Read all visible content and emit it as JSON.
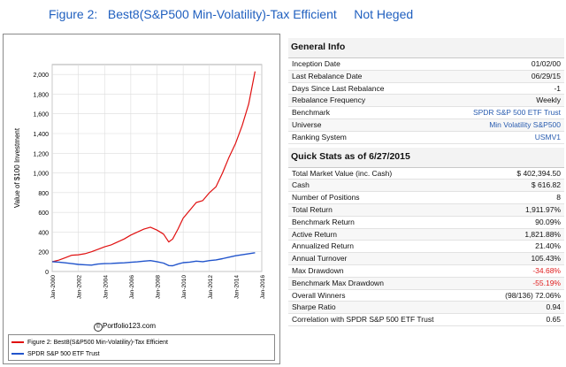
{
  "figure_title": "Figure 2:   Best8(S&P500 Min-Volatility)-Tax Efficient     Not Heged",
  "chart": {
    "ylabel": "Value of $100 Investment",
    "watermark": "Portfolio123.com",
    "legend": [
      {
        "name": "Figure 2:  Best8(S&P500 Min-Volatility)-Tax Efficient",
        "color": "#e01010"
      },
      {
        "name": "SPDR S&P 500 ETF Trust",
        "color": "#2255cc"
      }
    ]
  },
  "chart_data": {
    "type": "line",
    "ylabel": "Value of $100 Investment",
    "ylim": [
      0,
      2100
    ],
    "yticks": [
      "2,000",
      "1,800",
      "1,600",
      "1,400",
      "1,200",
      "1,000",
      "800",
      "600",
      "400",
      "200",
      "0"
    ],
    "ytick_values": [
      2000,
      1800,
      1600,
      1400,
      1200,
      1000,
      800,
      600,
      400,
      200,
      0
    ],
    "xticks": [
      "Jan-2000",
      "Jan-2002",
      "Jan-2004",
      "Jan-2006",
      "Jan-2008",
      "Jan-2010",
      "Jan-2012",
      "Jan-2014",
      "Jan-2016"
    ],
    "xtick_values": [
      2000,
      2002,
      2004,
      2006,
      2008,
      2010,
      2012,
      2014,
      2016
    ],
    "xlim": [
      2000,
      2016
    ],
    "grid": true,
    "series": [
      {
        "name": "Figure 2:  Best8(S&P500 Min-Volatility)-Tax Efficient",
        "color": "#e01010",
        "x": [
          2000.0,
          2000.5,
          2001.0,
          2001.5,
          2002.0,
          2002.5,
          2003.0,
          2003.5,
          2004.0,
          2004.5,
          2005.0,
          2005.5,
          2006.0,
          2006.5,
          2007.0,
          2007.5,
          2008.0,
          2008.5,
          2008.9,
          2009.2,
          2009.6,
          2010.0,
          2010.5,
          2011.0,
          2011.5,
          2012.0,
          2012.5,
          2013.0,
          2013.5,
          2014.0,
          2014.5,
          2015.0,
          2015.49
        ],
        "y": [
          100,
          115,
          140,
          165,
          170,
          180,
          200,
          225,
          250,
          270,
          300,
          330,
          370,
          400,
          430,
          450,
          420,
          380,
          300,
          330,
          430,
          540,
          620,
          700,
          720,
          800,
          860,
          1000,
          1160,
          1300,
          1480,
          1700,
          2030
        ]
      },
      {
        "name": "SPDR S&P 500 ETF Trust",
        "color": "#2255cc",
        "x": [
          2000.0,
          2000.5,
          2001.0,
          2001.5,
          2002.0,
          2002.5,
          2003.0,
          2003.5,
          2004.0,
          2004.5,
          2005.0,
          2005.5,
          2006.0,
          2006.5,
          2007.0,
          2007.5,
          2008.0,
          2008.5,
          2008.9,
          2009.2,
          2009.6,
          2010.0,
          2010.5,
          2011.0,
          2011.5,
          2012.0,
          2012.5,
          2013.0,
          2013.5,
          2014.0,
          2014.5,
          2015.0,
          2015.49
        ],
        "y": [
          100,
          95,
          88,
          80,
          72,
          68,
          65,
          75,
          80,
          82,
          85,
          88,
          93,
          98,
          105,
          110,
          100,
          85,
          60,
          58,
          75,
          90,
          95,
          105,
          100,
          110,
          118,
          130,
          145,
          160,
          170,
          180,
          190
        ]
      }
    ]
  },
  "general_info": {
    "heading": "General Info",
    "rows": [
      {
        "label": "Inception Date",
        "value": "01/02/00"
      },
      {
        "label": "Last Rebalance Date",
        "value": "06/29/15"
      },
      {
        "label": "Days Since Last Rebalance",
        "value": "-1"
      },
      {
        "label": "Rebalance Frequency",
        "value": "Weekly"
      },
      {
        "label": "Benchmark",
        "value": "SPDR S&P 500 ETF Trust"
      },
      {
        "label": "Universe",
        "value": "Min Volatility S&P500"
      },
      {
        "label": "Ranking System",
        "value": "USMV1"
      }
    ]
  },
  "quick_stats": {
    "heading": "Quick Stats as of 6/27/2015",
    "rows": [
      {
        "label": "Total Market Value (inc. Cash)",
        "value": "$ 402,394.50"
      },
      {
        "label": "Cash",
        "value": "$ 616.82"
      },
      {
        "label": "Number of Positions",
        "value": "8"
      },
      {
        "label": "Total Return",
        "value": "1,911.97%"
      },
      {
        "label": "Benchmark Return",
        "value": "90.09%"
      },
      {
        "label": "Active Return",
        "value": "1,821.88%"
      },
      {
        "label": "Annualized Return",
        "value": "21.40%"
      },
      {
        "label": "Annual Turnover",
        "value": "105.43%"
      },
      {
        "label": "Max Drawdown",
        "value": "-34.68%"
      },
      {
        "label": "Benchmark Max Drawdown",
        "value": "-55.19%"
      },
      {
        "label": "Overall Winners",
        "value": "(98/136) 72.06%"
      },
      {
        "label": "Sharpe Ratio",
        "value": "0.94"
      },
      {
        "label": "Correlation with SPDR S&P 500 ETF Trust",
        "value": "0.65"
      }
    ]
  }
}
